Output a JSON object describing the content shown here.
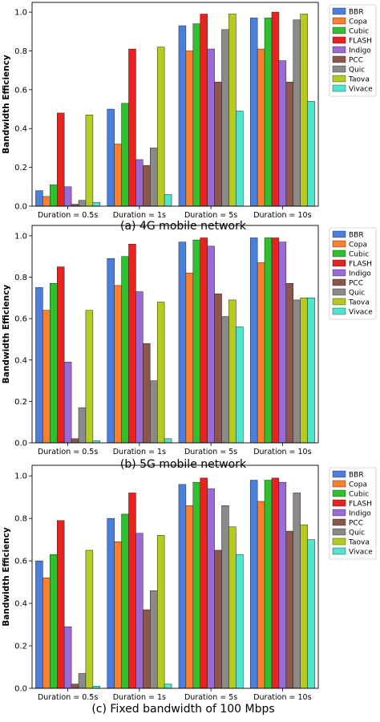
{
  "series_colors": [
    "#4a7fde",
    "#ff7f2a",
    "#2ec12e",
    "#e8231f",
    "#9a6ad6",
    "#8c564b",
    "#8a8a8a",
    "#b5cc1e",
    "#4fe6cf"
  ],
  "chart_data": [
    {
      "type": "bar",
      "title": "(a) 4G mobile network",
      "xlabel": "",
      "ylabel": "Bandwidth Efficiency",
      "ylim": [
        0,
        1.05
      ],
      "yticks": [
        "0.0",
        "0.2",
        "0.4",
        "0.6",
        "0.8",
        "1.0"
      ],
      "grid": false,
      "legend_position": "right",
      "categories": [
        "Duration = 0.5s",
        "Duration = 1s",
        "Duration = 5s",
        "Duration = 10s"
      ],
      "series": [
        {
          "name": "BBR",
          "values": [
            0.08,
            0.5,
            0.93,
            0.97
          ]
        },
        {
          "name": "Copa",
          "values": [
            0.05,
            0.32,
            0.8,
            0.81
          ]
        },
        {
          "name": "Cubic",
          "values": [
            0.11,
            0.53,
            0.94,
            0.97
          ]
        },
        {
          "name": "FLASH",
          "values": [
            0.48,
            0.81,
            0.99,
            1.0
          ]
        },
        {
          "name": "Indigo",
          "values": [
            0.1,
            0.24,
            0.81,
            0.75
          ]
        },
        {
          "name": "PCC",
          "values": [
            0.01,
            0.21,
            0.64,
            0.64
          ]
        },
        {
          "name": "Quic",
          "values": [
            0.03,
            0.3,
            0.91,
            0.96
          ]
        },
        {
          "name": "Taova",
          "values": [
            0.47,
            0.82,
            0.99,
            0.99
          ]
        },
        {
          "name": "Vivace",
          "values": [
            0.02,
            0.06,
            0.49,
            0.54
          ]
        }
      ]
    },
    {
      "type": "bar",
      "title": "(b) 5G mobile network",
      "xlabel": "",
      "ylabel": "Bandwidth Efficiency",
      "ylim": [
        0,
        1.05
      ],
      "yticks": [
        "0.0",
        "0.2",
        "0.4",
        "0.6",
        "0.8",
        "1.0"
      ],
      "grid": false,
      "legend_position": "right",
      "categories": [
        "Duration = 0.5s",
        "Duration = 1s",
        "Duration = 5s",
        "Duration = 10s"
      ],
      "series": [
        {
          "name": "BBR",
          "values": [
            0.75,
            0.89,
            0.97,
            0.99
          ]
        },
        {
          "name": "Copa",
          "values": [
            0.64,
            0.76,
            0.82,
            0.87
          ]
        },
        {
          "name": "Cubic",
          "values": [
            0.77,
            0.9,
            0.98,
            0.99
          ]
        },
        {
          "name": "FLASH",
          "values": [
            0.85,
            0.96,
            0.99,
            0.99
          ]
        },
        {
          "name": "Indigo",
          "values": [
            0.39,
            0.73,
            0.95,
            0.97
          ]
        },
        {
          "name": "PCC",
          "values": [
            0.02,
            0.48,
            0.72,
            0.77
          ]
        },
        {
          "name": "Quic",
          "values": [
            0.17,
            0.3,
            0.61,
            0.69
          ]
        },
        {
          "name": "Taova",
          "values": [
            0.64,
            0.68,
            0.69,
            0.7
          ]
        },
        {
          "name": "Vivace",
          "values": [
            0.01,
            0.02,
            0.56,
            0.7
          ]
        }
      ]
    },
    {
      "type": "bar",
      "title": "(c) Fixed bandwidth of 100 Mbps",
      "xlabel": "",
      "ylabel": "Bandwidth Efficiency",
      "ylim": [
        0,
        1.05
      ],
      "yticks": [
        "0.0",
        "0.2",
        "0.4",
        "0.6",
        "0.8",
        "1.0"
      ],
      "grid": false,
      "legend_position": "right",
      "categories": [
        "Duration = 0.5s",
        "Duration = 1s",
        "Duration = 5s",
        "Duration = 10s"
      ],
      "series": [
        {
          "name": "BBR",
          "values": [
            0.6,
            0.8,
            0.96,
            0.98
          ]
        },
        {
          "name": "Copa",
          "values": [
            0.52,
            0.69,
            0.86,
            0.88
          ]
        },
        {
          "name": "Cubic",
          "values": [
            0.63,
            0.82,
            0.97,
            0.98
          ]
        },
        {
          "name": "FLASH",
          "values": [
            0.79,
            0.92,
            0.99,
            0.99
          ]
        },
        {
          "name": "Indigo",
          "values": [
            0.29,
            0.73,
            0.94,
            0.97
          ]
        },
        {
          "name": "PCC",
          "values": [
            0.02,
            0.37,
            0.65,
            0.74
          ]
        },
        {
          "name": "Quic",
          "values": [
            0.07,
            0.46,
            0.86,
            0.92
          ]
        },
        {
          "name": "Taova",
          "values": [
            0.65,
            0.72,
            0.76,
            0.77
          ]
        },
        {
          "name": "Vivace",
          "values": [
            0.01,
            0.02,
            0.63,
            0.7
          ]
        }
      ]
    }
  ]
}
